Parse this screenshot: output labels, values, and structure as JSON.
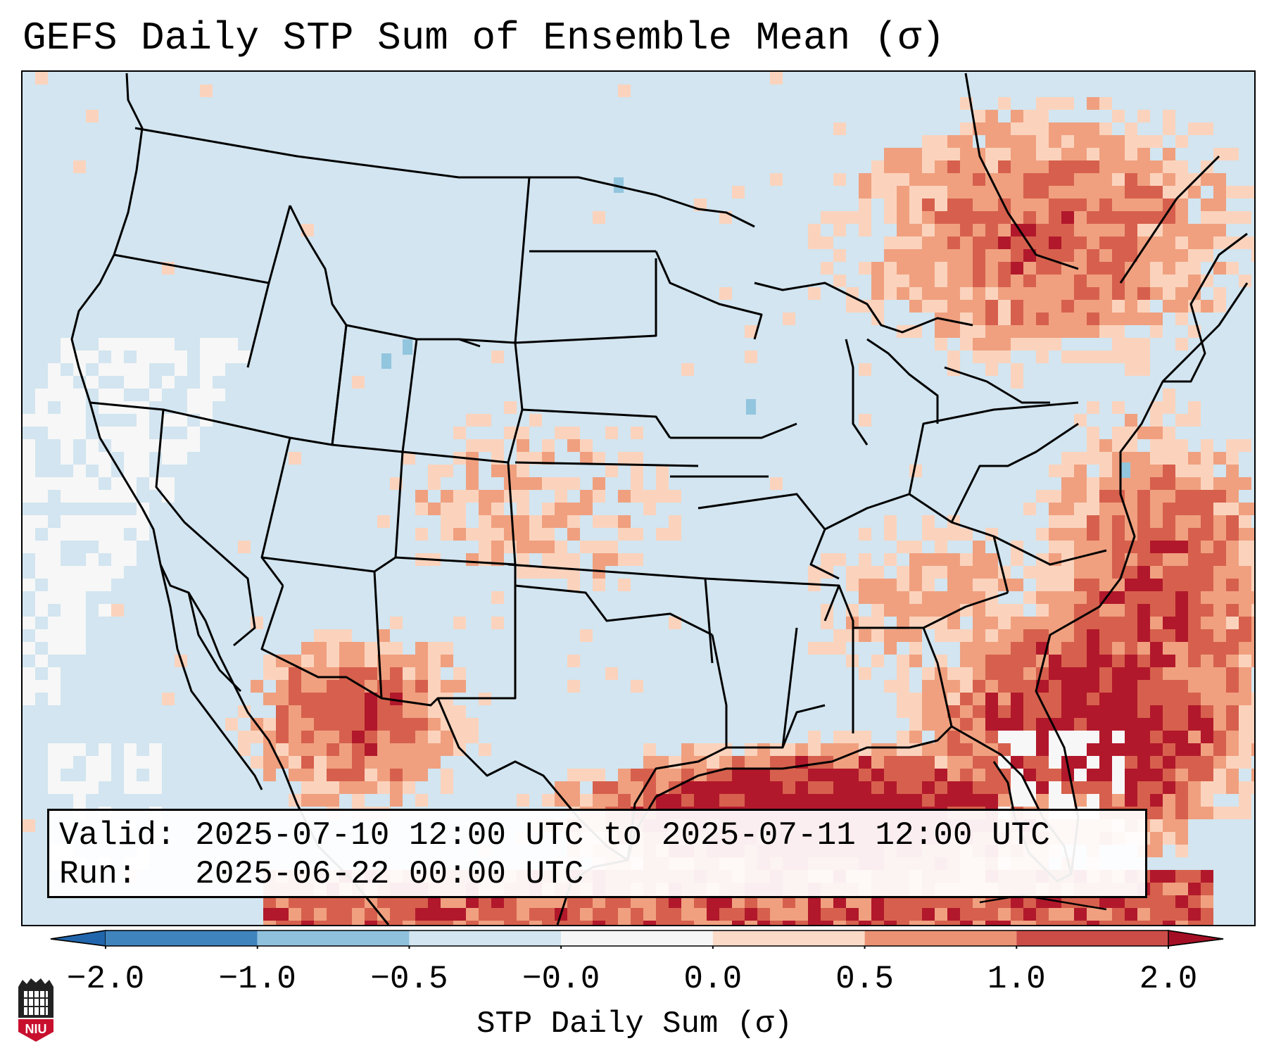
{
  "title": "GEFS Daily STP Sum of Ensemble Mean (σ)",
  "info_box": {
    "valid_label": "Valid:",
    "valid_value": "2025-07-10 12:00 UTC to 2025-07-11 12:00 UTC",
    "run_label": "Run:",
    "run_value": "2025-06-22 00:00 UTC"
  },
  "colorbar": {
    "label": "STP Daily Sum (σ)",
    "ticks": [
      "−2.0",
      "−1.0",
      "−0.5",
      "−0.0",
      "0.0",
      "0.5",
      "1.0",
      "2.0"
    ],
    "colors": [
      "#3f84bd",
      "#8fc1dd",
      "#d2e5f0",
      "#f6f6f6",
      "#fbdac8",
      "#eb9275",
      "#cc4c48",
      "#b2182b"
    ],
    "under_color": "#2166ac",
    "over_color": "#a50f25"
  },
  "map_colors": {
    "background": "#d2e5f0",
    "white": "#f7f7f7",
    "light": "#fbd3bd",
    "mid": "#f0a07f",
    "high": "#d6604d",
    "max": "#b2182b",
    "blue": "#92c5de"
  },
  "logo": {
    "text": "NIU",
    "color": "#c8102e"
  },
  "icons": {
    "logo": "niu-logo-icon"
  }
}
